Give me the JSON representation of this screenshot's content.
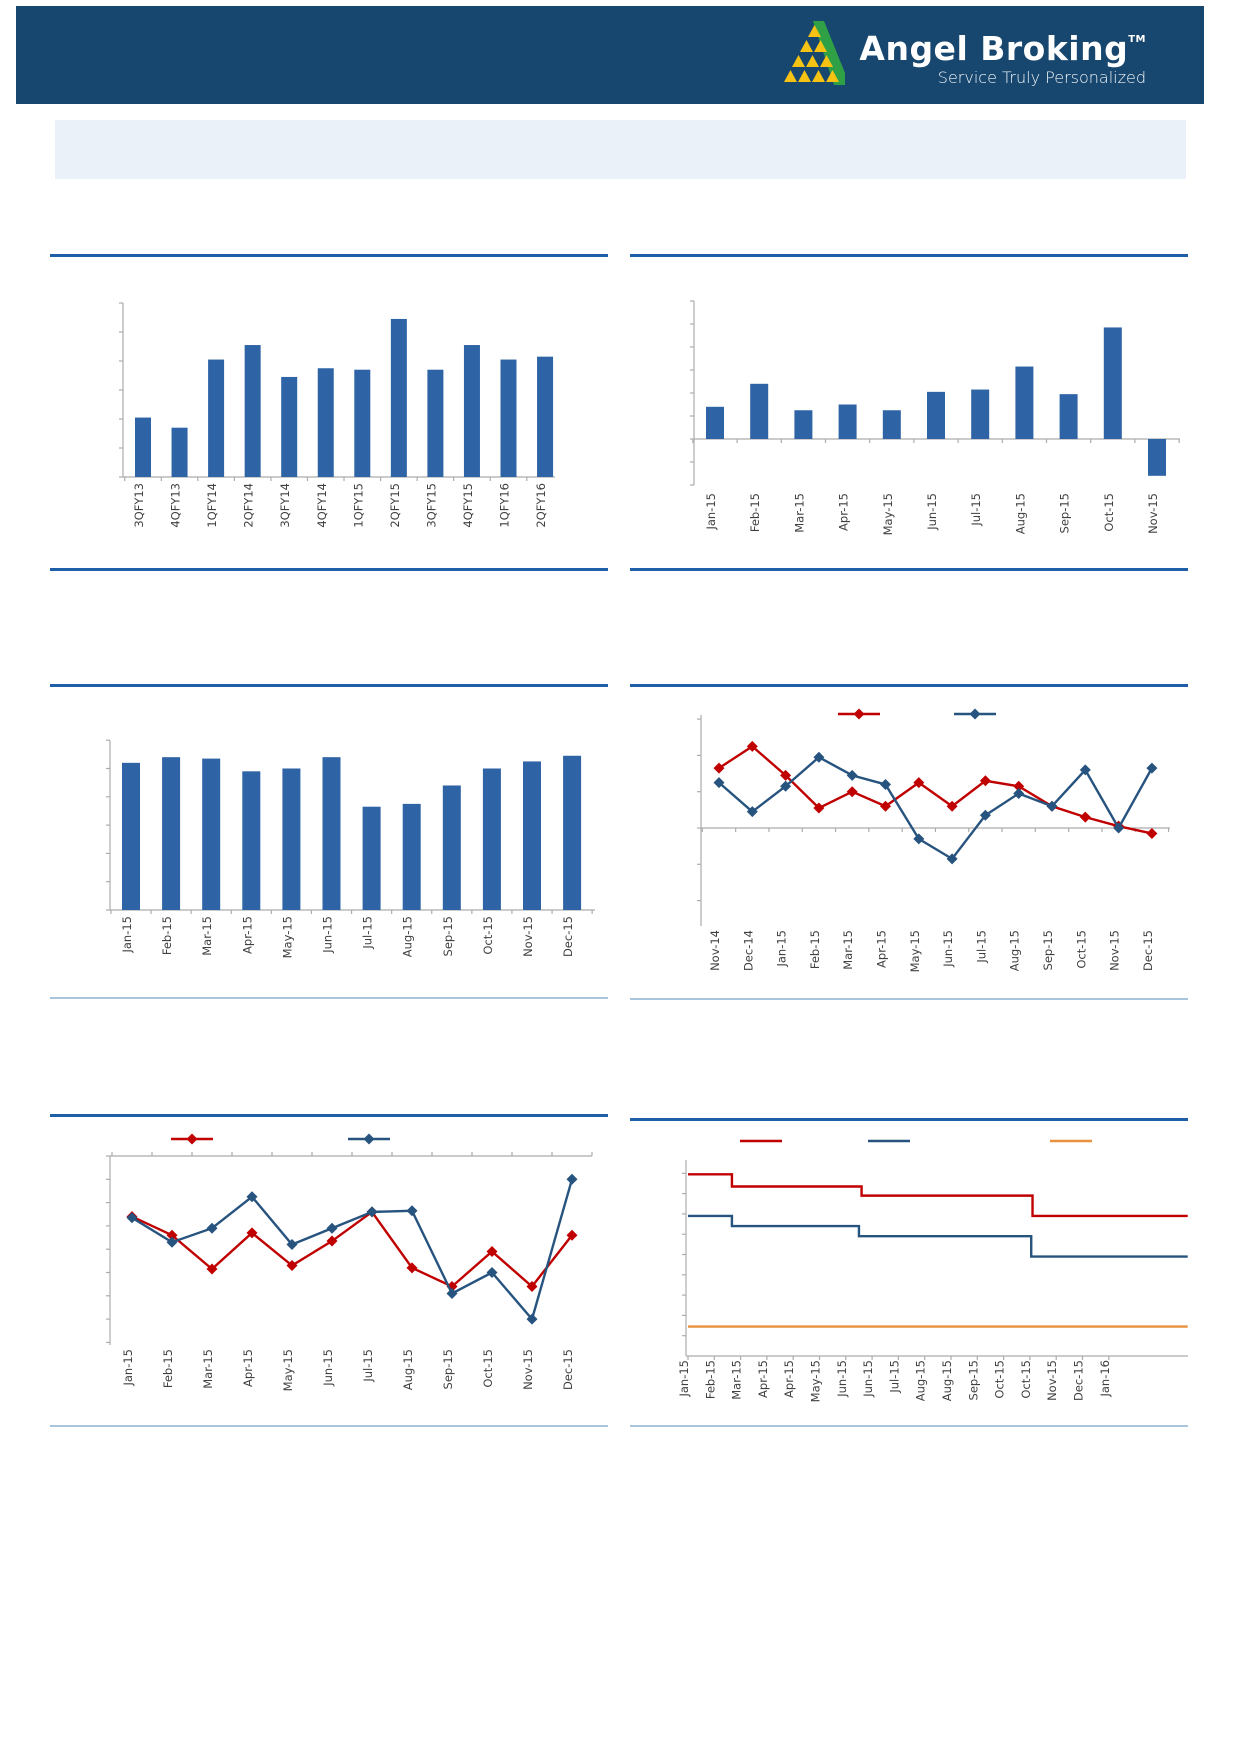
{
  "header": {
    "brand": "Angel Broking",
    "trademark": "TM",
    "tagline": "Service Truly Personalized"
  },
  "banner": {
    "text": ""
  },
  "colors": {
    "header_bg": "#17476E",
    "rule_dark": "#1F5FA8",
    "rule_light": "#A9C4DD",
    "banner_bg": "#EBF1F8",
    "bar": "#2E63A6",
    "series_red": "#C00000",
    "series_navy": "#27537F",
    "series_orange": "#E8913F",
    "axis_gray": "#ACACAC",
    "label_text": "#404040",
    "logo_green": "#2FA045",
    "logo_yellow": "#F6C214"
  },
  "chart_data": [
    {
      "type": "bar",
      "title": "",
      "categories": [
        "3QFY13",
        "4QFY13",
        "1QFY14",
        "2QFY14",
        "3QFY14",
        "4QFY14",
        "1QFY15",
        "2QFY15",
        "3QFY15",
        "4QFY15",
        "1QFY16",
        "2QFY16"
      ],
      "values": [
        2.05,
        1.7,
        4.05,
        4.55,
        3.45,
        3.75,
        3.7,
        5.45,
        3.7,
        4.55,
        4.05,
        4.15
      ],
      "ylim": [
        0,
        6
      ],
      "ytick_step": 1,
      "bar_color": "#2E63A6",
      "grid": false,
      "legend": "none"
    },
    {
      "type": "bar",
      "title": "",
      "categories": [
        "Jan-15",
        "Feb-15",
        "Mar-15",
        "Apr-15",
        "May-15",
        "Jun-15",
        "Jul-15",
        "Aug-15",
        "Sep-15",
        "Oct-15",
        "Nov-15"
      ],
      "values": [
        1.4,
        2.4,
        1.25,
        1.5,
        1.25,
        2.05,
        2.15,
        3.15,
        1.95,
        4.85,
        -1.6
      ],
      "ylim": [
        -2,
        6
      ],
      "ytick_step": 1,
      "bar_color": "#2E63A6",
      "grid": false,
      "legend": "none"
    },
    {
      "type": "bar",
      "title": "",
      "categories": [
        "Jan-15",
        "Feb-15",
        "Mar-15",
        "Apr-15",
        "May-15",
        "Jun-15",
        "Jul-15",
        "Aug-15",
        "Sep-15",
        "Oct-15",
        "Nov-15",
        "Dec-15"
      ],
      "values": [
        5.2,
        5.4,
        5.35,
        4.9,
        5.0,
        5.4,
        3.65,
        3.75,
        4.4,
        5.0,
        5.25,
        5.45
      ],
      "ylim": [
        0,
        6
      ],
      "ytick_step": 1,
      "bar_color": "#2E63A6",
      "grid": false,
      "legend": "none"
    },
    {
      "type": "line",
      "title": "",
      "categories": [
        "Nov-14",
        "Dec-14",
        "Jan-15",
        "Feb-15",
        "Mar-15",
        "Apr-15",
        "May-15",
        "Jun-15",
        "Jul-15",
        "Aug-15",
        "Sep-15",
        "Oct-15",
        "Nov-15",
        "Dec-15"
      ],
      "series": [
        {
          "name": "series-red",
          "color": "#C00000",
          "marker": "diamond",
          "values": [
            1.65,
            2.25,
            1.45,
            0.55,
            1.0,
            0.6,
            1.25,
            0.6,
            1.3,
            1.15,
            0.6,
            0.3,
            0.05,
            -0.15
          ]
        },
        {
          "name": "series-navy",
          "color": "#27537F",
          "marker": "diamond",
          "values": [
            1.25,
            0.45,
            1.15,
            1.95,
            1.45,
            1.2,
            -0.3,
            -0.85,
            0.35,
            0.95,
            0.6,
            1.6,
            0.0,
            1.65
          ]
        }
      ],
      "ylim": [
        -3,
        3.2
      ],
      "ytick_step": 1,
      "grid": false,
      "legend": "top"
    },
    {
      "type": "line",
      "title": "",
      "categories": [
        "Jan-15",
        "Feb-15",
        "Mar-15",
        "Apr-15",
        "May-15",
        "Jun-15",
        "Jul-15",
        "Aug-15",
        "Sep-15",
        "Oct-15",
        "Nov-15",
        "Dec-15"
      ],
      "category_axis": "top",
      "series": [
        {
          "name": "series-red",
          "color": "#C00000",
          "marker": "diamond",
          "values": [
            -2.6,
            -3.4,
            -4.85,
            -3.3,
            -4.7,
            -3.65,
            -2.4,
            -4.8,
            -5.6,
            -4.1,
            -5.6,
            -3.4
          ]
        },
        {
          "name": "series-navy",
          "color": "#27537F",
          "marker": "diamond",
          "values": [
            -2.65,
            -3.7,
            -3.1,
            -1.75,
            -3.8,
            -3.1,
            -2.4,
            -2.35,
            -5.9,
            -5.0,
            -7.0,
            -1.0
          ]
        }
      ],
      "ylim": [
        -8,
        0
      ],
      "ytick_step": 1,
      "grid": false,
      "legend": "top"
    },
    {
      "type": "step",
      "title": "",
      "categories": [
        "Jan-15",
        "Feb-15",
        "Mar-15",
        "Apr-15",
        "Apr-15",
        "May-15",
        "Jun-15",
        "Jun-15",
        "Jul-15",
        "Aug-15",
        "Aug-15",
        "Sep-15",
        "Oct-15",
        "Oct-15",
        "Nov-15",
        "Dec-15",
        "Jan-16"
      ],
      "series": [
        {
          "name": "series-red",
          "color": "#C00000",
          "points": [
            [
              0,
              8.95
            ],
            [
              1.67,
              8.95
            ],
            [
              1.67,
              8.35
            ],
            [
              6.6,
              8.35
            ],
            [
              6.6,
              7.9
            ],
            [
              13.1,
              7.9
            ],
            [
              13.1,
              6.9
            ],
            [
              19,
              6.9
            ]
          ]
        },
        {
          "name": "series-navy",
          "color": "#27537F",
          "points": [
            [
              0,
              6.9
            ],
            [
              1.67,
              6.9
            ],
            [
              1.67,
              6.4
            ],
            [
              6.5,
              6.4
            ],
            [
              6.5,
              5.9
            ],
            [
              13.05,
              5.9
            ],
            [
              13.05,
              4.9
            ],
            [
              19,
              4.9
            ]
          ]
        },
        {
          "name": "series-orange",
          "color": "#E8913F",
          "points": [
            [
              0,
              1.45
            ],
            [
              19,
              1.45
            ]
          ]
        }
      ],
      "ylim": [
        0,
        9.6
      ],
      "ytick_step": 1,
      "grid": false,
      "legend": "top"
    }
  ]
}
